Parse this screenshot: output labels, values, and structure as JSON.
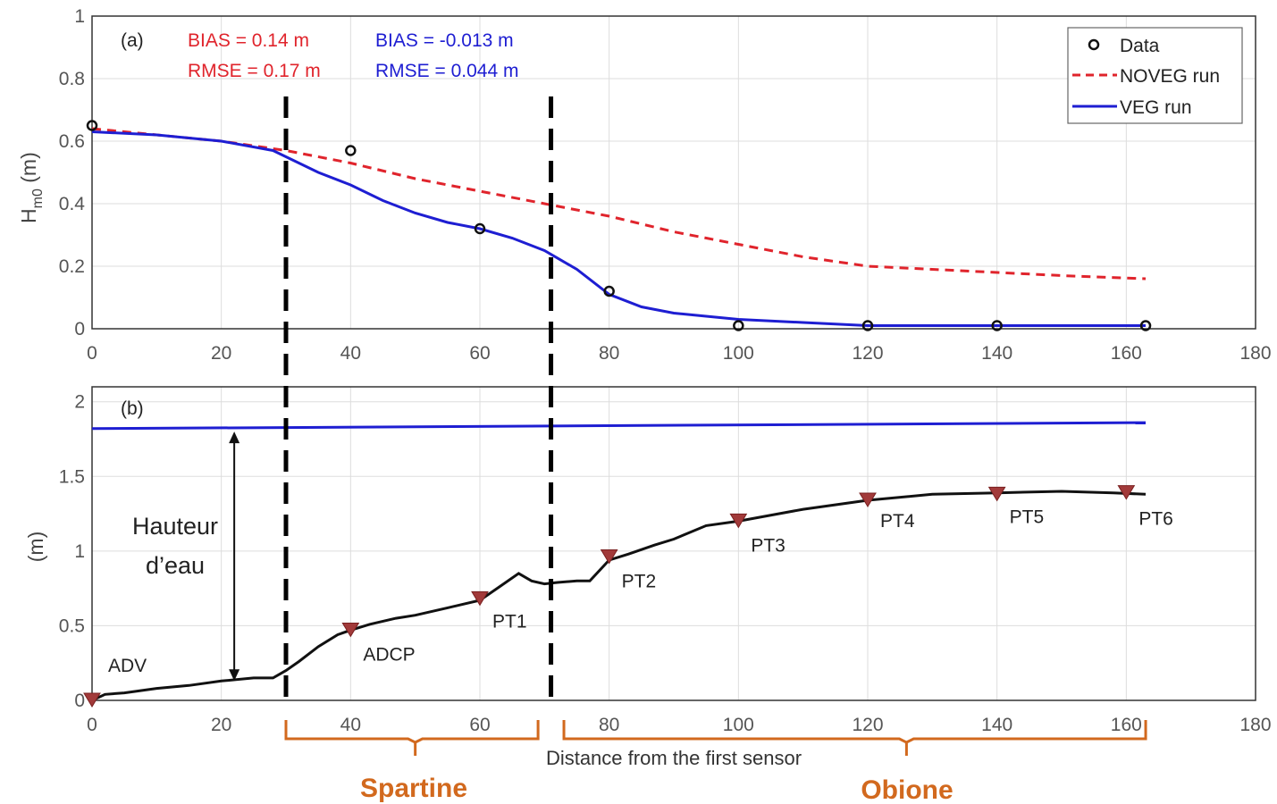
{
  "colors": {
    "noveg": "#e0242c",
    "veg": "#1e1ed2",
    "bathy": "#111111",
    "sensor": "#a23a3a",
    "vegetation": "#d2691e",
    "grid": "#dddddd",
    "dashed_divider": "#000000"
  },
  "chart_data": [
    {
      "type": "line",
      "panel_label": "(a)",
      "ylabel_main": "H",
      "ylabel_sub": "m0",
      "ylabel_unit": " (m)",
      "xlim": [
        0,
        180
      ],
      "ylim": [
        0,
        1
      ],
      "x_ticks": [
        "0",
        "20",
        "40",
        "60",
        "80",
        "100",
        "120",
        "140",
        "160",
        "180"
      ],
      "y_ticks": [
        "0",
        "0.2",
        "0.4",
        "0.6",
        "0.8",
        "1"
      ],
      "stats_noveg": {
        "bias": "BIAS = 0.14 m",
        "rmse": "RMSE = 0.17 m"
      },
      "stats_veg": {
        "bias": "BIAS = -0.013 m",
        "rmse": "RMSE = 0.044 m"
      },
      "legend_position": "top-right",
      "series": [
        {
          "name": "Data",
          "style": "markers",
          "x": [
            0,
            40,
            60,
            80,
            100,
            120,
            140,
            163
          ],
          "y": [
            0.65,
            0.57,
            0.32,
            0.12,
            0.01,
            0.01,
            0.01,
            0.01
          ]
        },
        {
          "name": "NOVEG run",
          "style": "dashed",
          "x": [
            0,
            10,
            20,
            30,
            40,
            50,
            60,
            70,
            80,
            90,
            100,
            110,
            120,
            130,
            140,
            150,
            163
          ],
          "y": [
            0.64,
            0.62,
            0.6,
            0.57,
            0.53,
            0.48,
            0.44,
            0.4,
            0.36,
            0.31,
            0.27,
            0.23,
            0.2,
            0.19,
            0.18,
            0.17,
            0.16
          ]
        },
        {
          "name": "VEG run",
          "style": "solid",
          "x": [
            0,
            10,
            20,
            28,
            30,
            35,
            40,
            45,
            50,
            55,
            60,
            65,
            70,
            75,
            80,
            85,
            90,
            95,
            100,
            110,
            120,
            130,
            140,
            150,
            163
          ],
          "y": [
            0.63,
            0.62,
            0.6,
            0.57,
            0.55,
            0.5,
            0.46,
            0.41,
            0.37,
            0.34,
            0.32,
            0.29,
            0.25,
            0.19,
            0.11,
            0.07,
            0.05,
            0.04,
            0.03,
            0.02,
            0.01,
            0.01,
            0.01,
            0.01,
            0.01
          ]
        }
      ]
    },
    {
      "type": "line",
      "panel_label": "(b)",
      "ylabel": "(m)",
      "xlabel": "Distance from the first sensor",
      "xlim": [
        0,
        180
      ],
      "ylim": [
        0,
        2.1
      ],
      "x_ticks": [
        "0",
        "20",
        "40",
        "60",
        "80",
        "100",
        "120",
        "140",
        "160",
        "180"
      ],
      "y_ticks": [
        "0",
        "0.5",
        "1",
        "1.5",
        "2"
      ],
      "series": [
        {
          "style": "water-level",
          "x": [
            0,
            163
          ],
          "y": [
            1.82,
            1.86
          ]
        },
        {
          "style": "bathymetry",
          "x": [
            0,
            2,
            5,
            10,
            15,
            20,
            25,
            28,
            30,
            32,
            35,
            38,
            40,
            43,
            47,
            50,
            55,
            60,
            63,
            66,
            68,
            70,
            72,
            75,
            77,
            80,
            83,
            87,
            90,
            95,
            100,
            110,
            120,
            130,
            140,
            150,
            158,
            163
          ],
          "y": [
            0,
            0.04,
            0.05,
            0.08,
            0.1,
            0.13,
            0.15,
            0.15,
            0.2,
            0.26,
            0.36,
            0.44,
            0.47,
            0.51,
            0.55,
            0.57,
            0.62,
            0.67,
            0.76,
            0.85,
            0.8,
            0.78,
            0.79,
            0.8,
            0.8,
            0.94,
            0.98,
            1.04,
            1.08,
            1.17,
            1.2,
            1.28,
            1.34,
            1.38,
            1.39,
            1.4,
            1.39,
            1.38
          ]
        }
      ],
      "sensors": [
        {
          "label": "ADV",
          "x": 0,
          "y": 0
        },
        {
          "label": "ADCP",
          "x": 40,
          "y": 0.47
        },
        {
          "label": "PT1",
          "x": 60,
          "y": 0.68
        },
        {
          "label": "PT2",
          "x": 80,
          "y": 0.96
        },
        {
          "label": "PT3",
          "x": 100,
          "y": 1.2
        },
        {
          "label": "PT4",
          "x": 120,
          "y": 1.34
        },
        {
          "label": "PT5",
          "x": 140,
          "y": 1.38
        },
        {
          "label": "PT6",
          "x": 160,
          "y": 1.39
        }
      ],
      "water_depth_label": [
        "Hauteur",
        "d’eau"
      ],
      "water_depth_arrow": {
        "x": 22,
        "y_top": 1.8,
        "y_bottom": 0.13
      }
    }
  ],
  "dividers_x": [
    30,
    71
  ],
  "vegetation_zones": [
    {
      "label": "Spartine",
      "x_start": 30,
      "x_end": 69,
      "x_center": 50
    },
    {
      "label": "Obione",
      "x_start": 73,
      "x_end": 163,
      "x_center": 126
    }
  ]
}
